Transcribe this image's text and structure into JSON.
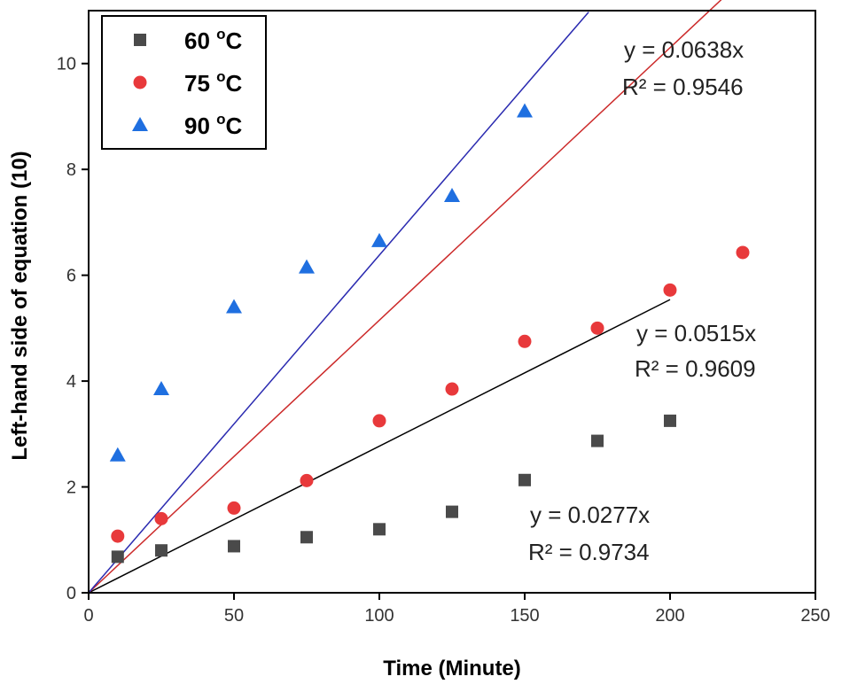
{
  "chart_data": {
    "type": "scatter",
    "xlabel": "Time (Minute)",
    "ylabel": "Left-hand side of equation (10)",
    "xlim": [
      0,
      250
    ],
    "ylim": [
      0,
      11
    ],
    "xticks": [
      0,
      50,
      100,
      150,
      200,
      250
    ],
    "yticks": [
      0,
      2,
      4,
      6,
      8,
      10
    ],
    "grid": false,
    "legend_position": "top-left",
    "series": [
      {
        "name": "60 °C",
        "label_main": "60 ",
        "label_sup": "o",
        "label_end": "C",
        "marker": "square",
        "color": "#4a4a4a",
        "line_color": "#000000",
        "slope": 0.0277,
        "fit_range": [
          0,
          200
        ],
        "x": [
          10,
          25,
          50,
          75,
          100,
          125,
          150,
          175,
          200
        ],
        "y": [
          0.68,
          0.8,
          0.88,
          1.05,
          1.2,
          1.53,
          2.13,
          2.87,
          3.25
        ],
        "equation": "y = 0.0277x",
        "r2": "R² = 0.9734"
      },
      {
        "name": "75 °C",
        "label_main": "75 ",
        "label_sup": "o",
        "label_end": "C",
        "marker": "circle",
        "color": "#e8393b",
        "line_color": "#cc2a2a",
        "slope": 0.0515,
        "fit_range": [
          0,
          225
        ],
        "x": [
          10,
          25,
          50,
          75,
          100,
          125,
          150,
          175,
          200,
          225
        ],
        "y": [
          1.07,
          1.4,
          1.6,
          2.12,
          3.25,
          3.85,
          4.75,
          5.0,
          5.72,
          6.43
        ],
        "equation": "y = 0.0515x",
        "r2": "R² = 0.9609"
      },
      {
        "name": "90 °C",
        "label_main": "90 ",
        "label_sup": "o",
        "label_end": "C",
        "marker": "triangle",
        "color": "#1f6fe0",
        "line_color": "#2a2ab0",
        "slope": 0.0638,
        "fit_range": [
          0,
          172
        ],
        "x": [
          10,
          25,
          50,
          75,
          100,
          125,
          150
        ],
        "y": [
          2.6,
          3.85,
          5.4,
          6.15,
          6.65,
          7.5,
          9.1
        ],
        "equation": "y = 0.0638x",
        "r2": "R² = 0.9546"
      }
    ]
  }
}
